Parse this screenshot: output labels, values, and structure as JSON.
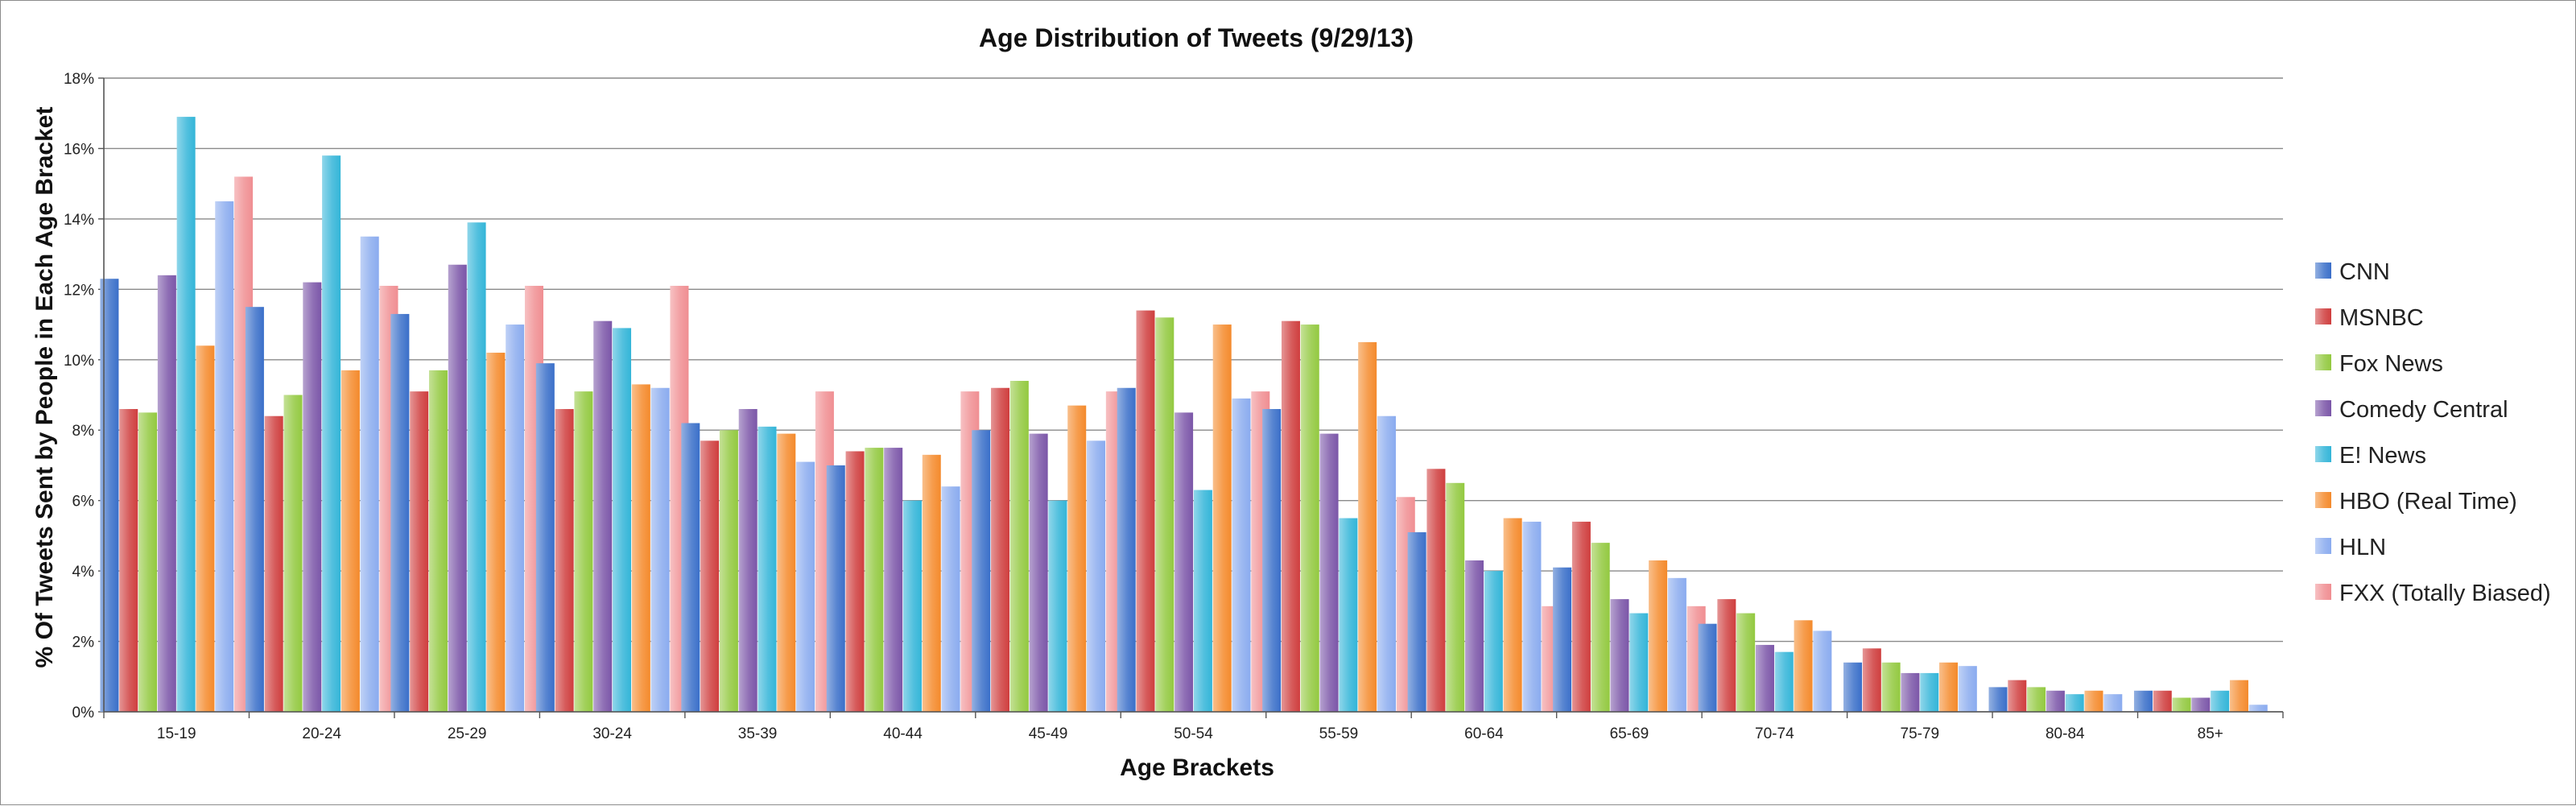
{
  "chart_data": {
    "type": "bar",
    "title": "Age Distribution of Tweets (9/29/13)",
    "xlabel": "Age Brackets",
    "ylabel": "% Of Tweets Sent by People in Each Age Bracket",
    "ylim": [
      0,
      18
    ],
    "ytick_labels": [
      "0%",
      "2%",
      "4%",
      "6%",
      "8%",
      "10%",
      "12%",
      "14%",
      "16%",
      "18%"
    ],
    "ytick_values": [
      0,
      2,
      4,
      6,
      8,
      10,
      12,
      14,
      16,
      18
    ],
    "grid": true,
    "legend_position": "right",
    "categories": [
      "15-19",
      "20-24",
      "25-29",
      "30-24",
      "35-39",
      "40-44",
      "45-49",
      "50-54",
      "55-59",
      "60-64",
      "65-69",
      "70-74",
      "75-79",
      "80-84",
      "85+"
    ],
    "series": [
      {
        "name": "CNN",
        "color": "#3a6fc9",
        "values": [
          12.3,
          11.5,
          11.3,
          9.9,
          8.2,
          7.0,
          8.0,
          9.2,
          8.6,
          5.1,
          4.1,
          2.5,
          1.4,
          0.7,
          0.6
        ]
      },
      {
        "name": "MSNBC",
        "color": "#cf3e3e",
        "values": [
          8.6,
          8.4,
          9.1,
          8.6,
          7.7,
          7.4,
          9.2,
          11.4,
          11.1,
          6.9,
          5.4,
          3.2,
          1.8,
          0.9,
          0.6
        ]
      },
      {
        "name": "Fox News",
        "color": "#93c940",
        "values": [
          8.5,
          9.0,
          9.7,
          9.1,
          8.0,
          7.5,
          9.4,
          11.2,
          11.0,
          6.5,
          4.8,
          2.8,
          1.4,
          0.7,
          0.4
        ]
      },
      {
        "name": "Comedy Central",
        "color": "#7b56a8",
        "values": [
          12.4,
          12.2,
          12.7,
          11.1,
          8.6,
          7.5,
          7.9,
          8.5,
          7.9,
          4.3,
          3.2,
          1.9,
          1.1,
          0.6,
          0.4
        ]
      },
      {
        "name": "E! News",
        "color": "#33b5d8",
        "values": [
          16.9,
          15.8,
          13.9,
          10.9,
          8.1,
          6.0,
          6.0,
          6.3,
          5.5,
          4.0,
          2.8,
          1.7,
          1.1,
          0.5,
          0.6
        ]
      },
      {
        "name": "HBO (Real Time)",
        "color": "#f48a2c",
        "values": [
          10.4,
          9.7,
          10.2,
          9.3,
          7.9,
          7.3,
          8.7,
          11.0,
          10.5,
          5.5,
          4.3,
          2.6,
          1.4,
          0.6,
          0.9
        ]
      },
      {
        "name": "HLN",
        "color": "#8aabef",
        "values": [
          14.5,
          13.5,
          11.0,
          9.2,
          7.1,
          6.4,
          7.7,
          8.9,
          8.4,
          5.4,
          3.8,
          2.3,
          1.3,
          0.5,
          0.2
        ]
      },
      {
        "name": "FXX (Totally Biased)",
        "color": "#f08e92",
        "values": [
          15.2,
          12.1,
          12.1,
          12.1,
          9.1,
          9.1,
          9.1,
          9.1,
          6.1,
          3.0,
          3.0,
          0,
          0,
          0,
          0
        ]
      }
    ]
  }
}
